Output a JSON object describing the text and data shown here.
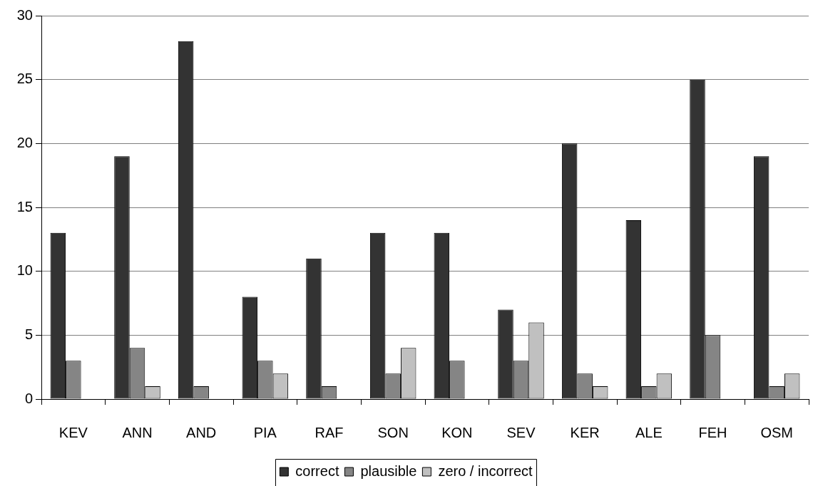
{
  "chart_data": {
    "type": "bar",
    "categories": [
      "KEV",
      "ANN",
      "AND",
      "PIA",
      "RAF",
      "SON",
      "KON",
      "SEV",
      "KER",
      "ALE",
      "FEH",
      "OSM"
    ],
    "series": [
      {
        "name": "correct",
        "color": "#333333",
        "values": [
          13,
          19,
          28,
          8,
          11,
          13,
          13,
          7,
          20,
          14,
          25,
          19
        ]
      },
      {
        "name": "plausible",
        "color": "#858585",
        "values": [
          3,
          4,
          1,
          3,
          1,
          2,
          3,
          3,
          2,
          1,
          5,
          1
        ]
      },
      {
        "name": "zero / incorrect",
        "color": "#c0c0c0",
        "values": [
          0,
          1,
          0,
          2,
          0,
          4,
          0,
          6,
          1,
          2,
          0,
          2
        ]
      }
    ],
    "ylim": [
      0,
      30
    ],
    "yticks": [
      0,
      5,
      10,
      15,
      20,
      25,
      30
    ],
    "grid": "y",
    "legend": "bottom"
  }
}
